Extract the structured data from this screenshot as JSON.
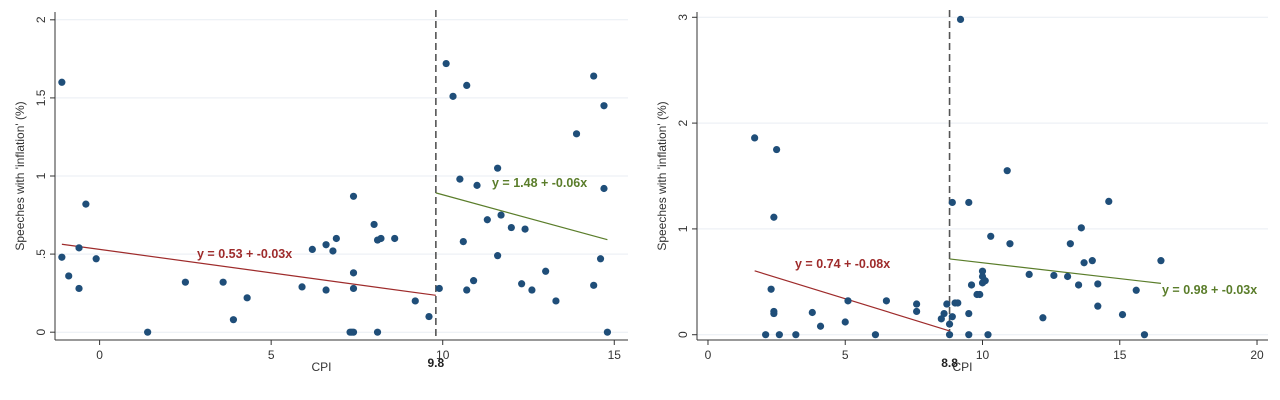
{
  "chart_data": [
    {
      "type": "scatter",
      "xlabel": "CPI",
      "ylabel": "Speeches with 'inflation' (%)",
      "xlim": [
        -1.3,
        15.4
      ],
      "ylim": [
        -0.05,
        2.05
      ],
      "xticks": [
        0,
        5,
        10,
        15
      ],
      "yticks": [
        0,
        0.5,
        1,
        1.5,
        2
      ],
      "xtick_labels": [
        "0",
        "5",
        "10",
        "15"
      ],
      "ytick_labels": [
        "0",
        ".5",
        "1",
        "1.5",
        "2"
      ],
      "grid": true,
      "threshold": 9.8,
      "threshold_label": "9.8",
      "colors": {
        "points": "#1f4e79",
        "fit_left": "#9e2b2b",
        "fit_right": "#5a7d2a",
        "threshold": "#555555"
      },
      "points": [
        [
          -1.1,
          1.6
        ],
        [
          -1.1,
          0.48
        ],
        [
          -0.9,
          0.36
        ],
        [
          -0.6,
          0.54
        ],
        [
          -0.6,
          0.28
        ],
        [
          -0.4,
          0.82
        ],
        [
          -0.1,
          0.47
        ],
        [
          1.4,
          0.0
        ],
        [
          2.5,
          0.32
        ],
        [
          3.6,
          0.32
        ],
        [
          3.9,
          0.08
        ],
        [
          4.3,
          0.22
        ],
        [
          5.9,
          0.29
        ],
        [
          6.2,
          0.53
        ],
        [
          6.6,
          0.56
        ],
        [
          6.6,
          0.27
        ],
        [
          6.8,
          0.52
        ],
        [
          6.9,
          0.6
        ],
        [
          7.3,
          0.0
        ],
        [
          7.35,
          0.0
        ],
        [
          7.4,
          0.87
        ],
        [
          7.4,
          0.38
        ],
        [
          7.4,
          0.28
        ],
        [
          7.4,
          0.0
        ],
        [
          8.0,
          0.69
        ],
        [
          8.1,
          0.59
        ],
        [
          8.2,
          0.6
        ],
        [
          8.1,
          0.0
        ],
        [
          8.6,
          0.6
        ],
        [
          9.2,
          0.2
        ],
        [
          9.6,
          0.1
        ],
        [
          9.9,
          0.28
        ],
        [
          10.1,
          1.72
        ],
        [
          10.3,
          1.51
        ],
        [
          10.5,
          0.98
        ],
        [
          10.6,
          0.58
        ],
        [
          10.7,
          1.58
        ],
        [
          10.7,
          0.27
        ],
        [
          10.9,
          0.33
        ],
        [
          11.0,
          0.94
        ],
        [
          11.3,
          0.72
        ],
        [
          11.6,
          1.05
        ],
        [
          11.6,
          0.49
        ],
        [
          11.7,
          0.75
        ],
        [
          12.0,
          0.67
        ],
        [
          12.3,
          0.31
        ],
        [
          12.4,
          0.66
        ],
        [
          12.6,
          0.27
        ],
        [
          13.0,
          0.39
        ],
        [
          13.3,
          0.2
        ],
        [
          13.9,
          1.27
        ],
        [
          14.4,
          1.64
        ],
        [
          14.4,
          0.3
        ],
        [
          14.6,
          0.47
        ],
        [
          14.7,
          1.45
        ],
        [
          14.7,
          0.92
        ],
        [
          14.8,
          0.0
        ]
      ],
      "fits": [
        {
          "label": "y = 0.53 + -0.03x",
          "intercept": 0.53,
          "slope": -0.03,
          "x_range": [
            -1.1,
            9.8
          ],
          "color": "#9e2b2b"
        },
        {
          "label": "y = 1.48 + -0.06x",
          "intercept": 1.48,
          "slope": -0.06,
          "x_range": [
            9.8,
            14.8
          ],
          "color": "#5a7d2a"
        }
      ]
    },
    {
      "type": "scatter",
      "xlabel": "CPI",
      "ylabel": "Speeches with 'inflation' (%)",
      "xlim": [
        -0.4,
        20.4
      ],
      "ylim": [
        -0.05,
        3.05
      ],
      "xticks": [
        0,
        5,
        10,
        15,
        20
      ],
      "yticks": [
        0,
        1,
        2,
        3
      ],
      "xtick_labels": [
        "0",
        "5",
        "10",
        "15",
        "20"
      ],
      "ytick_labels": [
        "0",
        "1",
        "2",
        "3"
      ],
      "grid": true,
      "threshold": 8.8,
      "threshold_label": "8.8",
      "colors": {
        "points": "#1f4e79",
        "fit_left": "#9e2b2b",
        "fit_right": "#5a7d2a",
        "threshold": "#555555"
      },
      "points": [
        [
          1.7,
          1.86
        ],
        [
          2.1,
          0.0
        ],
        [
          2.3,
          0.43
        ],
        [
          2.4,
          1.11
        ],
        [
          2.4,
          0.22
        ],
        [
          2.4,
          0.2
        ],
        [
          2.5,
          1.75
        ],
        [
          2.6,
          0.0
        ],
        [
          3.2,
          0.0
        ],
        [
          3.8,
          0.21
        ],
        [
          4.1,
          0.08
        ],
        [
          5.0,
          0.12
        ],
        [
          5.1,
          0.32
        ],
        [
          6.1,
          0.0
        ],
        [
          6.5,
          0.32
        ],
        [
          7.6,
          0.29
        ],
        [
          7.6,
          0.22
        ],
        [
          8.5,
          0.15
        ],
        [
          8.6,
          0.2
        ],
        [
          8.7,
          0.29
        ],
        [
          8.8,
          0.0
        ],
        [
          8.8,
          0.1
        ],
        [
          8.9,
          1.25
        ],
        [
          8.9,
          0.17
        ],
        [
          9.0,
          0.3
        ],
        [
          9.1,
          0.3
        ],
        [
          9.2,
          2.98
        ],
        [
          9.5,
          1.25
        ],
        [
          9.5,
          0.2
        ],
        [
          9.5,
          0.0
        ],
        [
          9.6,
          0.47
        ],
        [
          9.8,
          0.38
        ],
        [
          9.9,
          0.38
        ],
        [
          10.0,
          0.6
        ],
        [
          10.0,
          0.55
        ],
        [
          10.0,
          0.49
        ],
        [
          10.1,
          0.51
        ],
        [
          10.2,
          0.0
        ],
        [
          10.3,
          0.93
        ],
        [
          10.9,
          1.55
        ],
        [
          11.0,
          0.86
        ],
        [
          11.7,
          0.57
        ],
        [
          12.2,
          0.16
        ],
        [
          12.6,
          0.56
        ],
        [
          13.1,
          0.55
        ],
        [
          13.2,
          0.86
        ],
        [
          13.5,
          0.47
        ],
        [
          13.6,
          1.01
        ],
        [
          13.7,
          0.68
        ],
        [
          14.0,
          0.7
        ],
        [
          14.2,
          0.27
        ],
        [
          14.2,
          0.48
        ],
        [
          14.6,
          1.26
        ],
        [
          15.1,
          0.19
        ],
        [
          15.6,
          0.42
        ],
        [
          15.9,
          0.0
        ],
        [
          16.5,
          0.7
        ]
      ],
      "fits": [
        {
          "label": "y = 0.74 + -0.08x",
          "intercept": 0.74,
          "slope": -0.08,
          "x_range": [
            1.7,
            8.8
          ],
          "color": "#9e2b2b"
        },
        {
          "label": "y = 0.98 + -0.03x",
          "intercept": 0.98,
          "slope": -0.03,
          "x_range": [
            8.8,
            16.5
          ],
          "color": "#5a7d2a"
        }
      ]
    }
  ]
}
